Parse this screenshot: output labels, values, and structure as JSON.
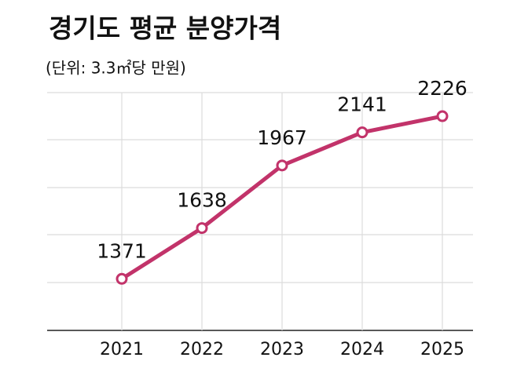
{
  "chart_data": {
    "type": "line",
    "title": "경기도 평균 분양가격",
    "subtitle": "(단위: 3.3㎡당 만원)",
    "categories": [
      "2021",
      "2022",
      "2023",
      "2024",
      "2025"
    ],
    "values": [
      1371,
      1638,
      1967,
      2141,
      2226
    ],
    "color": "#c2336a",
    "ylim": [
      1100,
      2350
    ]
  }
}
